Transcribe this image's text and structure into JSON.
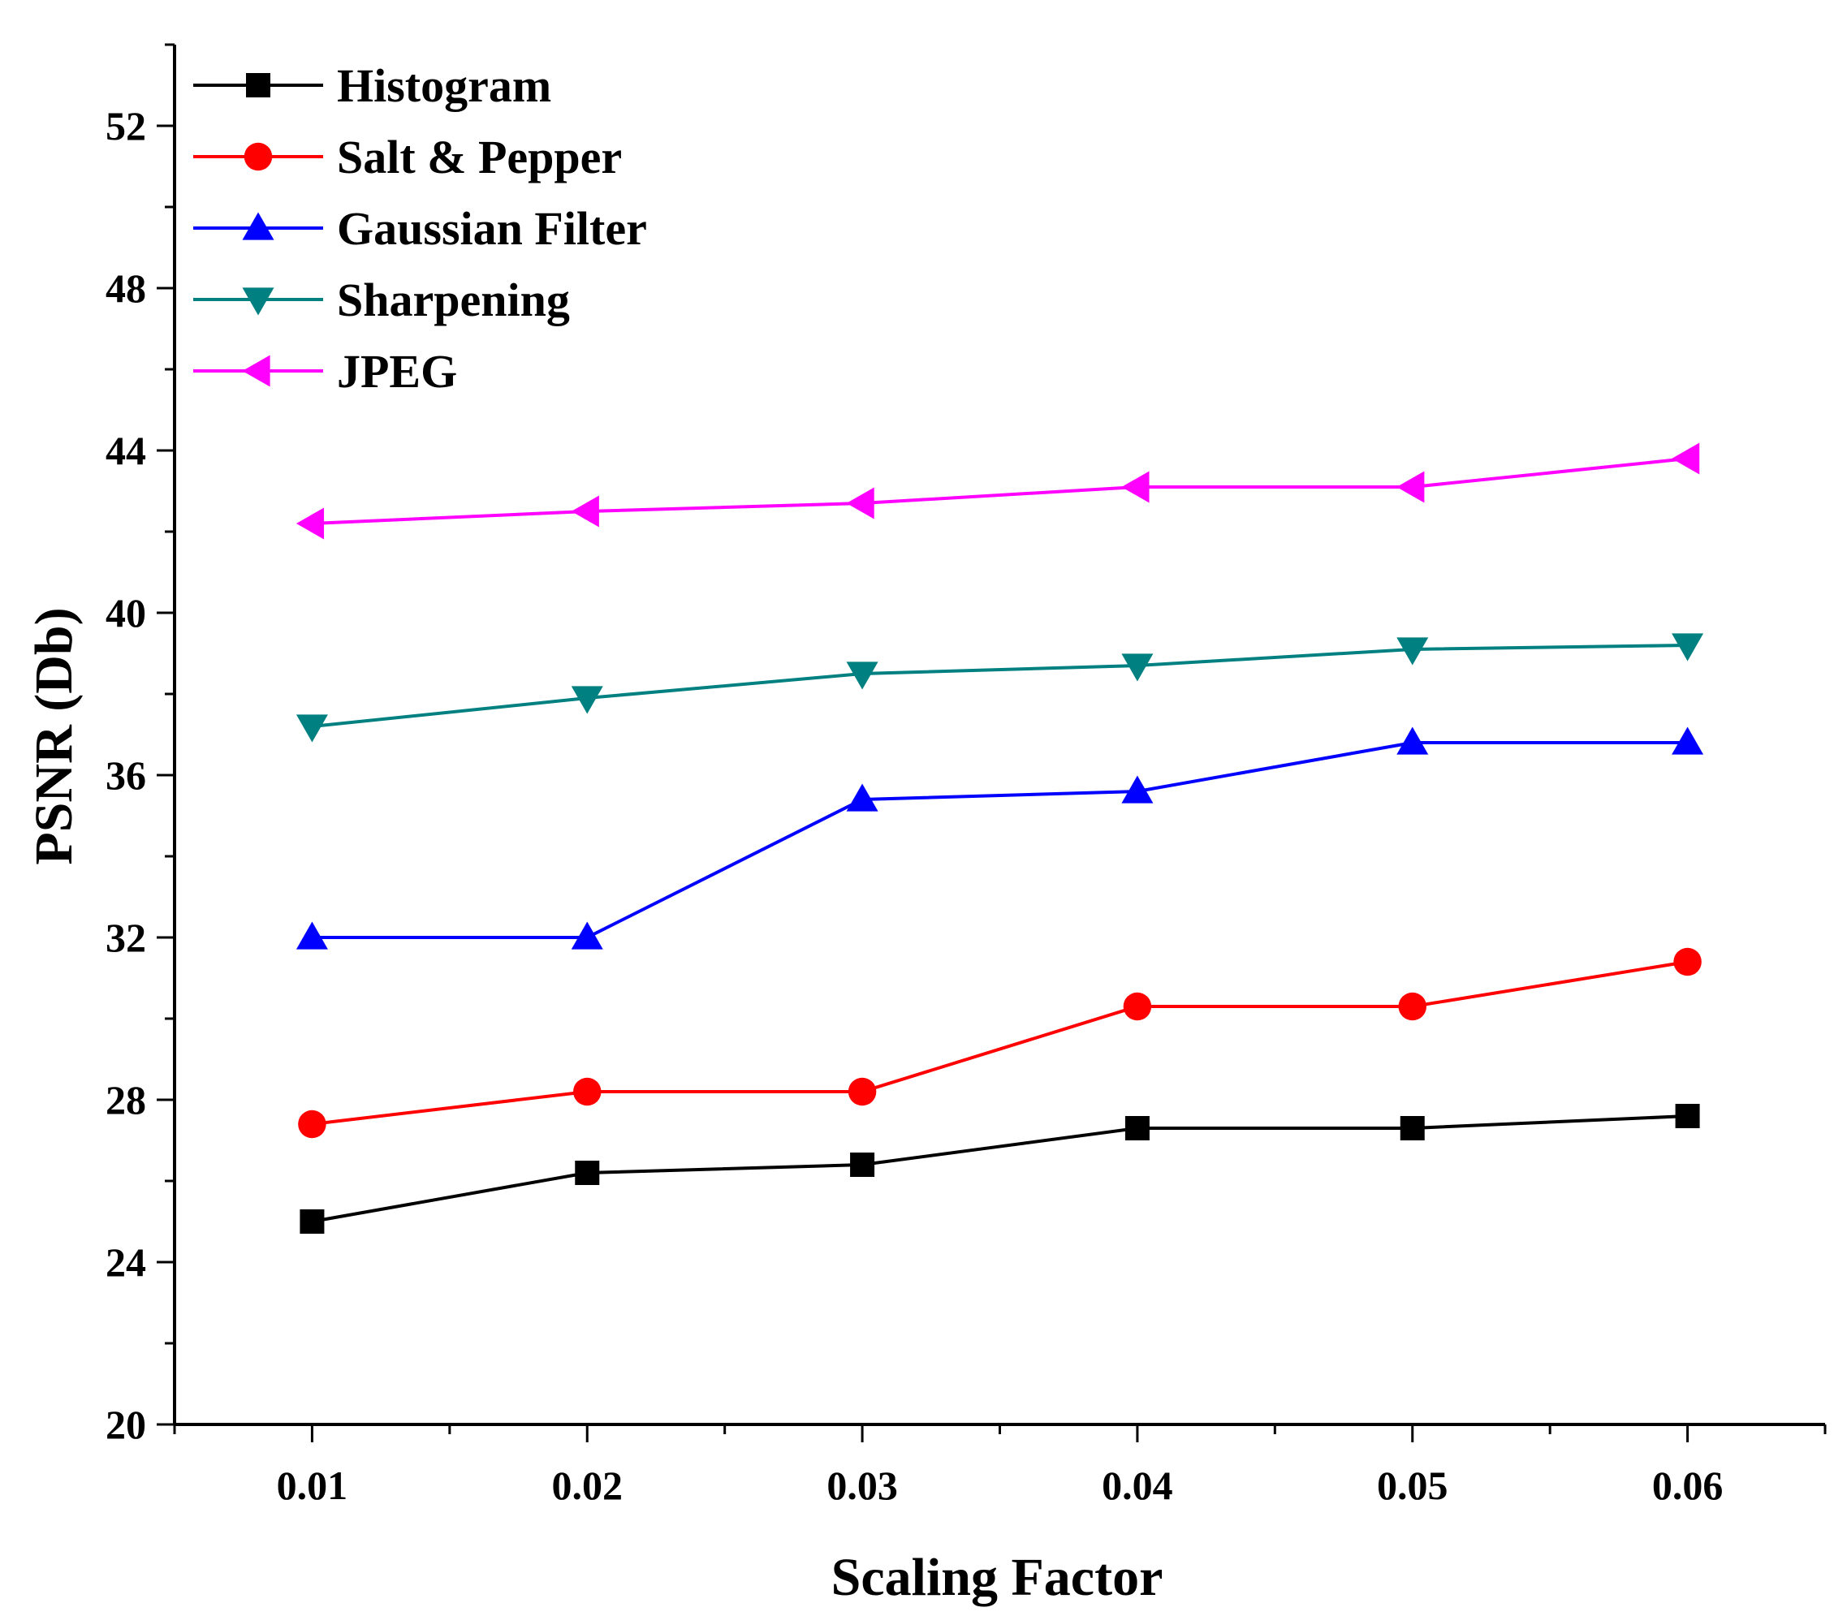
{
  "chart_data": {
    "type": "line",
    "title": "",
    "xlabel": "Scaling Factor",
    "ylabel": "PSNR (Db)",
    "x": [
      0.01,
      0.02,
      0.03,
      0.04,
      0.05,
      0.06
    ],
    "x_tick_labels": [
      "0.01",
      "0.02",
      "0.03",
      "0.04",
      "0.05",
      "0.06"
    ],
    "xlim": [
      0.005,
      0.065
    ],
    "ylim": [
      20,
      54
    ],
    "y_ticks": [
      20,
      24,
      28,
      32,
      36,
      40,
      44,
      48,
      52
    ],
    "y_tick_labels": [
      "20",
      "24",
      "28",
      "32",
      "36",
      "40",
      "44",
      "48",
      "52"
    ],
    "grid": false,
    "legend_position": "top-left",
    "series": [
      {
        "name": "Histogram",
        "color": "#000000",
        "marker": "square",
        "values": [
          25.0,
          26.2,
          26.4,
          27.3,
          27.3,
          27.6
        ]
      },
      {
        "name": "Salt & Pepper",
        "color": "#ff0000",
        "marker": "circle",
        "values": [
          27.4,
          28.2,
          28.2,
          30.3,
          30.3,
          31.4
        ]
      },
      {
        "name": "Gaussian Filter",
        "color": "#0000ff",
        "marker": "triangle-up",
        "values": [
          32.0,
          32.0,
          35.4,
          35.6,
          36.8,
          36.8
        ]
      },
      {
        "name": "Sharpening",
        "color": "#008080",
        "marker": "triangle-down",
        "values": [
          37.2,
          37.9,
          38.5,
          38.7,
          39.1,
          39.2
        ]
      },
      {
        "name": "JPEG",
        "color": "#ff00ff",
        "marker": "triangle-left",
        "values": [
          42.2,
          42.5,
          42.7,
          43.1,
          43.1,
          43.8
        ]
      }
    ]
  }
}
